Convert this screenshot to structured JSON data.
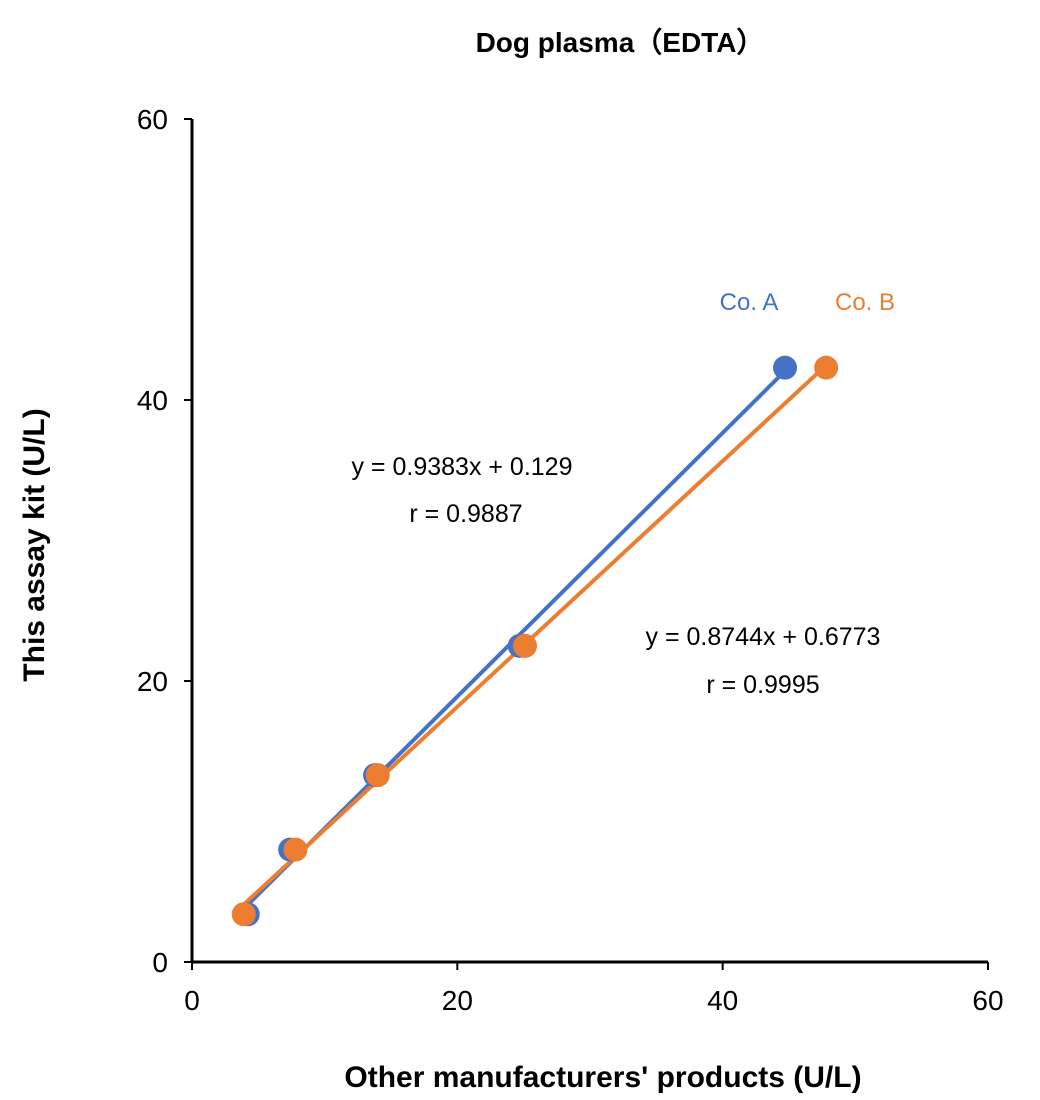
{
  "chart_data": {
    "type": "scatter",
    "title": "Dog plasma（EDTA）",
    "xlabel": "Other manufacturers' products (U/L)",
    "ylabel": "This assay kit (U/L)",
    "xlim": [
      0,
      60
    ],
    "ylim": [
      0,
      60
    ],
    "xticks": [
      "0",
      "20",
      "40",
      "60"
    ],
    "yticks": [
      "0",
      "20",
      "40",
      "60"
    ],
    "grid": false,
    "series": [
      {
        "name": "Co. A",
        "color": "#4472C4",
        "x": [
          4.2,
          7.4,
          13.8,
          24.7,
          44.7
        ],
        "y": [
          3.4,
          8.0,
          13.3,
          22.5,
          42.3
        ],
        "trendline": {
          "slope": 0.9383,
          "intercept": 0.129
        },
        "equation": "y = 0.9383x + 0.129",
        "r": "r = 0.9887"
      },
      {
        "name": "Co. B",
        "color": "#ED7D31",
        "x": [
          3.9,
          7.8,
          14.0,
          25.1,
          47.8
        ],
        "y": [
          3.4,
          8.0,
          13.3,
          22.5,
          42.3
        ],
        "trendline": {
          "slope": 0.8744,
          "intercept": 0.6773
        },
        "equation": "y = 0.8744x + 0.6773",
        "r": "r = 0.9995"
      }
    ]
  }
}
